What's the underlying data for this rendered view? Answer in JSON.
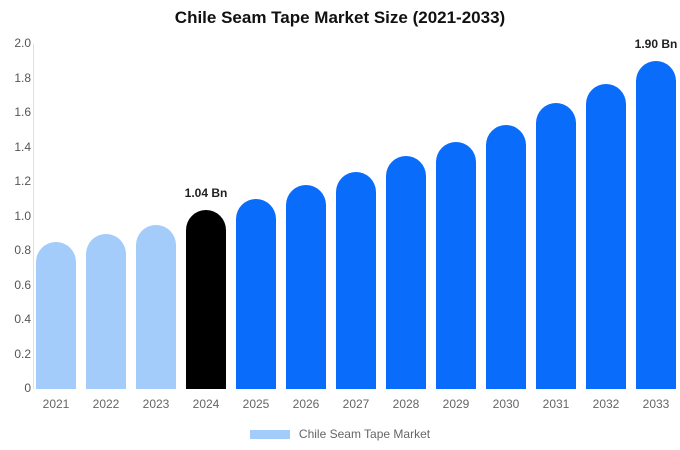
{
  "title": "Chile Seam Tape Market Size (2021-2033)",
  "legend": {
    "items": [
      {
        "label": "Chile Seam Tape Market",
        "color": "#A3CCFA"
      }
    ],
    "position": "bottom"
  },
  "colors": {
    "historical_bar": "#A3CCFA",
    "base_year_bar": "#000000",
    "forecast_bar": "#0A6CFA",
    "axis_line": "#e0e0e0",
    "tick_text": "#555555",
    "xtick_text": "#666666",
    "value_label_text": "#222222"
  },
  "chart_data": {
    "type": "bar",
    "title": "Chile Seam Tape Market Size (2021-2033)",
    "categories": [
      "2021",
      "2022",
      "2023",
      "2024",
      "2025",
      "2026",
      "2027",
      "2028",
      "2029",
      "2030",
      "2031",
      "2032",
      "2033"
    ],
    "series": [
      {
        "name": "Chile Seam Tape Market",
        "values": [
          0.85,
          0.9,
          0.95,
          1.04,
          1.1,
          1.18,
          1.26,
          1.35,
          1.43,
          1.53,
          1.66,
          1.77,
          1.9
        ]
      }
    ],
    "bar_colors": [
      "#A3CCFA",
      "#A3CCFA",
      "#A3CCFA",
      "#000000",
      "#0A6CFA",
      "#0A6CFA",
      "#0A6CFA",
      "#0A6CFA",
      "#0A6CFA",
      "#0A6CFA",
      "#0A6CFA",
      "#0A6CFA",
      "#0A6CFA"
    ],
    "data_labels": [
      {
        "category": "2024",
        "text": "1.04 Bn"
      },
      {
        "category": "2033",
        "text": "1.90 Bn"
      }
    ],
    "xlabel": "",
    "ylabel": "",
    "ylim": [
      0,
      2.0
    ],
    "yticks": [
      0,
      0.2,
      0.4,
      0.6,
      0.8,
      1.0,
      1.2,
      1.4,
      1.6,
      1.8,
      2.0
    ],
    "ytick_labels": [
      "0",
      "0.2",
      "0.4",
      "0.6",
      "0.8",
      "1.0",
      "1.2",
      "1.4",
      "1.6",
      "1.8",
      "2.0"
    ],
    "grid": false,
    "legend_position": "bottom"
  }
}
